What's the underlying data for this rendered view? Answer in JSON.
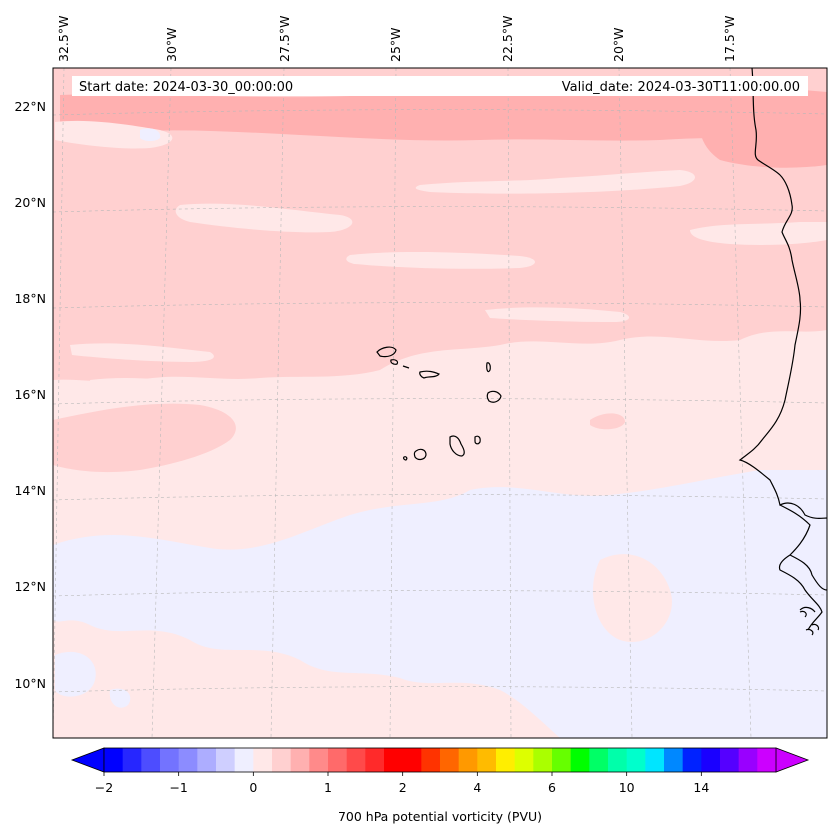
{
  "info": {
    "start_date": "Start date: 2024-03-30_00:00:00",
    "valid_date": "Valid_date: 2024-03-30T11:00:00.00"
  },
  "lon_labels": [
    "32.5°W",
    "30°W",
    "27.5°W",
    "25°W",
    "22.5°W",
    "20°W",
    "17.5°W"
  ],
  "lat_labels": [
    "22°N",
    "20°N",
    "18°N",
    "16°N",
    "14°N",
    "12°N",
    "10°N"
  ],
  "colorbar": {
    "label": "700 hPa potential vorticity (PVU)",
    "ticks": [
      "−2",
      "−1",
      "0",
      "1",
      "2",
      "4",
      "6",
      "10",
      "14"
    ],
    "colors": [
      "#0000ff",
      "#2626ff",
      "#4d4dff",
      "#7373ff",
      "#8c8cff",
      "#adadff",
      "#cfcfff",
      "#efefff",
      "#ffe8e8",
      "#ffd0d0",
      "#ffb0b0",
      "#ff8a8a",
      "#ff6a6a",
      "#ff4a4a",
      "#ff2a2a",
      "#ff0000",
      "#ff0000",
      "#ff3300",
      "#ff6600",
      "#ff9900",
      "#ffbb00",
      "#ffee00",
      "#ddff00",
      "#aaff00",
      "#66ff00",
      "#00ff00",
      "#00ff66",
      "#00ffaa",
      "#00ffcc",
      "#00e5ff",
      "#0088ff",
      "#0022ff",
      "#1a00ff",
      "#5500ff",
      "#9900ff",
      "#cc00ff"
    ],
    "extend_low_color": "#0000ff",
    "extend_high_color": "#cc00ff"
  },
  "field_colors": {
    "very_light_blue": "#efefff",
    "very_light_pink": "#ffe8e8",
    "light_pink": "#ffd0d0",
    "pink": "#ffb0b0"
  }
}
